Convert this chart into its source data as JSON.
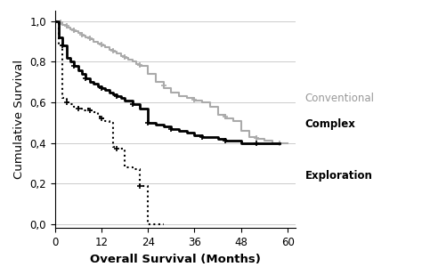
{
  "title": "",
  "xlabel": "Overall Survival (Months)",
  "ylabel": "Cumulative Survival",
  "xlim": [
    0,
    62
  ],
  "ylim": [
    -0.02,
    1.05
  ],
  "xticks": [
    0,
    12,
    24,
    36,
    48,
    60
  ],
  "yticks": [
    0.0,
    0.2,
    0.4,
    0.6,
    0.8,
    1.0
  ],
  "ytick_labels": [
    "0,0",
    "0,2",
    "0,4",
    "0,6",
    "0,8",
    "1,0"
  ],
  "conventional": {
    "step_x": [
      0,
      1,
      1,
      2,
      2,
      3,
      3,
      4,
      4,
      5,
      5,
      6,
      6,
      7,
      7,
      8,
      8,
      9,
      9,
      10,
      10,
      11,
      11,
      12,
      12,
      13,
      13,
      14,
      14,
      15,
      15,
      16,
      16,
      17,
      17,
      18,
      18,
      19,
      19,
      20,
      20,
      21,
      21,
      22,
      22,
      24,
      24,
      26,
      26,
      28,
      28,
      30,
      30,
      32,
      32,
      34,
      34,
      36,
      36,
      38,
      38,
      40,
      40,
      42,
      42,
      44,
      44,
      46,
      46,
      48,
      48,
      50,
      50,
      52,
      52,
      54,
      54,
      56,
      56,
      58,
      58,
      60
    ],
    "step_y": [
      1.0,
      1.0,
      0.99,
      0.99,
      0.98,
      0.98,
      0.97,
      0.97,
      0.96,
      0.96,
      0.95,
      0.95,
      0.94,
      0.94,
      0.93,
      0.93,
      0.92,
      0.92,
      0.91,
      0.91,
      0.9,
      0.9,
      0.89,
      0.89,
      0.88,
      0.88,
      0.87,
      0.87,
      0.86,
      0.86,
      0.85,
      0.85,
      0.84,
      0.84,
      0.83,
      0.83,
      0.82,
      0.82,
      0.81,
      0.81,
      0.8,
      0.8,
      0.79,
      0.79,
      0.78,
      0.78,
      0.74,
      0.74,
      0.7,
      0.7,
      0.67,
      0.67,
      0.65,
      0.65,
      0.63,
      0.63,
      0.62,
      0.62,
      0.61,
      0.61,
      0.6,
      0.6,
      0.58,
      0.58,
      0.54,
      0.54,
      0.52,
      0.52,
      0.51,
      0.51,
      0.46,
      0.46,
      0.43,
      0.43,
      0.42,
      0.42,
      0.41,
      0.41,
      0.4,
      0.4,
      0.4,
      0.4
    ],
    "censors_x": [
      1.5,
      3,
      5,
      7,
      9,
      12,
      15,
      18,
      22,
      28,
      36,
      44,
      52,
      58
    ],
    "censors_y": [
      0.995,
      0.975,
      0.955,
      0.935,
      0.915,
      0.885,
      0.855,
      0.825,
      0.785,
      0.685,
      0.615,
      0.53,
      0.425,
      0.4
    ],
    "color": "#aaaaaa",
    "linewidth": 1.5,
    "linestyle": "solid",
    "label": "Conventional",
    "label_color": "#999999"
  },
  "complex": {
    "step_x": [
      0,
      1,
      1,
      2,
      2,
      3,
      3,
      4,
      4,
      5,
      5,
      6,
      6,
      7,
      7,
      8,
      8,
      9,
      9,
      10,
      10,
      11,
      11,
      12,
      12,
      13,
      13,
      14,
      14,
      15,
      15,
      16,
      16,
      17,
      17,
      18,
      18,
      20,
      20,
      22,
      22,
      24,
      24,
      26,
      26,
      28,
      28,
      30,
      30,
      32,
      32,
      34,
      34,
      36,
      36,
      38,
      38,
      40,
      40,
      42,
      42,
      44,
      44,
      46,
      46,
      48,
      48,
      52,
      52,
      58
    ],
    "step_y": [
      1.0,
      1.0,
      0.92,
      0.92,
      0.88,
      0.88,
      0.82,
      0.82,
      0.8,
      0.8,
      0.78,
      0.78,
      0.76,
      0.76,
      0.74,
      0.74,
      0.72,
      0.72,
      0.7,
      0.7,
      0.69,
      0.69,
      0.68,
      0.68,
      0.67,
      0.67,
      0.66,
      0.66,
      0.65,
      0.65,
      0.64,
      0.64,
      0.63,
      0.63,
      0.62,
      0.62,
      0.61,
      0.61,
      0.59,
      0.59,
      0.57,
      0.57,
      0.5,
      0.5,
      0.49,
      0.49,
      0.48,
      0.48,
      0.47,
      0.47,
      0.46,
      0.46,
      0.45,
      0.45,
      0.44,
      0.44,
      0.43,
      0.43,
      0.43,
      0.43,
      0.42,
      0.42,
      0.41,
      0.41,
      0.41,
      0.41,
      0.4,
      0.4,
      0.4,
      0.4
    ],
    "censors_x": [
      2,
      5,
      8,
      12,
      16,
      20,
      24,
      30,
      38,
      44,
      52
    ],
    "censors_y": [
      0.88,
      0.78,
      0.72,
      0.67,
      0.63,
      0.59,
      0.5,
      0.47,
      0.43,
      0.41,
      0.4
    ],
    "color": "#000000",
    "linewidth": 2.0,
    "linestyle": "solid",
    "label": "Complex",
    "label_color": "#000000"
  },
  "exploration": {
    "step_x": [
      0,
      1,
      1,
      2,
      2,
      3,
      3,
      4,
      4,
      5,
      5,
      6,
      6,
      7,
      7,
      8,
      8,
      9,
      9,
      10,
      10,
      11,
      11,
      12,
      12,
      13,
      13,
      14,
      14,
      15,
      15,
      16,
      16,
      18,
      18,
      20,
      20,
      22,
      22,
      24,
      24,
      28,
      28
    ],
    "step_y": [
      1.0,
      1.0,
      0.88,
      0.88,
      0.62,
      0.62,
      0.6,
      0.6,
      0.59,
      0.59,
      0.58,
      0.58,
      0.57,
      0.57,
      0.56,
      0.56,
      0.57,
      0.57,
      0.56,
      0.56,
      0.55,
      0.55,
      0.53,
      0.53,
      0.52,
      0.52,
      0.51,
      0.51,
      0.5,
      0.5,
      0.38,
      0.38,
      0.37,
      0.37,
      0.28,
      0.28,
      0.27,
      0.27,
      0.19,
      0.19,
      0.0,
      0.0,
      0.0
    ],
    "censors_x": [
      3,
      6,
      9,
      12,
      16,
      22
    ],
    "censors_y": [
      0.6,
      0.57,
      0.56,
      0.52,
      0.37,
      0.19
    ],
    "color": "#000000",
    "linewidth": 1.5,
    "linestyle": "dotted",
    "label": "Exploration",
    "label_color": "#000000"
  },
  "bg_color": "#ffffff",
  "grid_color": "#cccccc",
  "figsize": [
    4.74,
    3.09
  ],
  "dpi": 100
}
